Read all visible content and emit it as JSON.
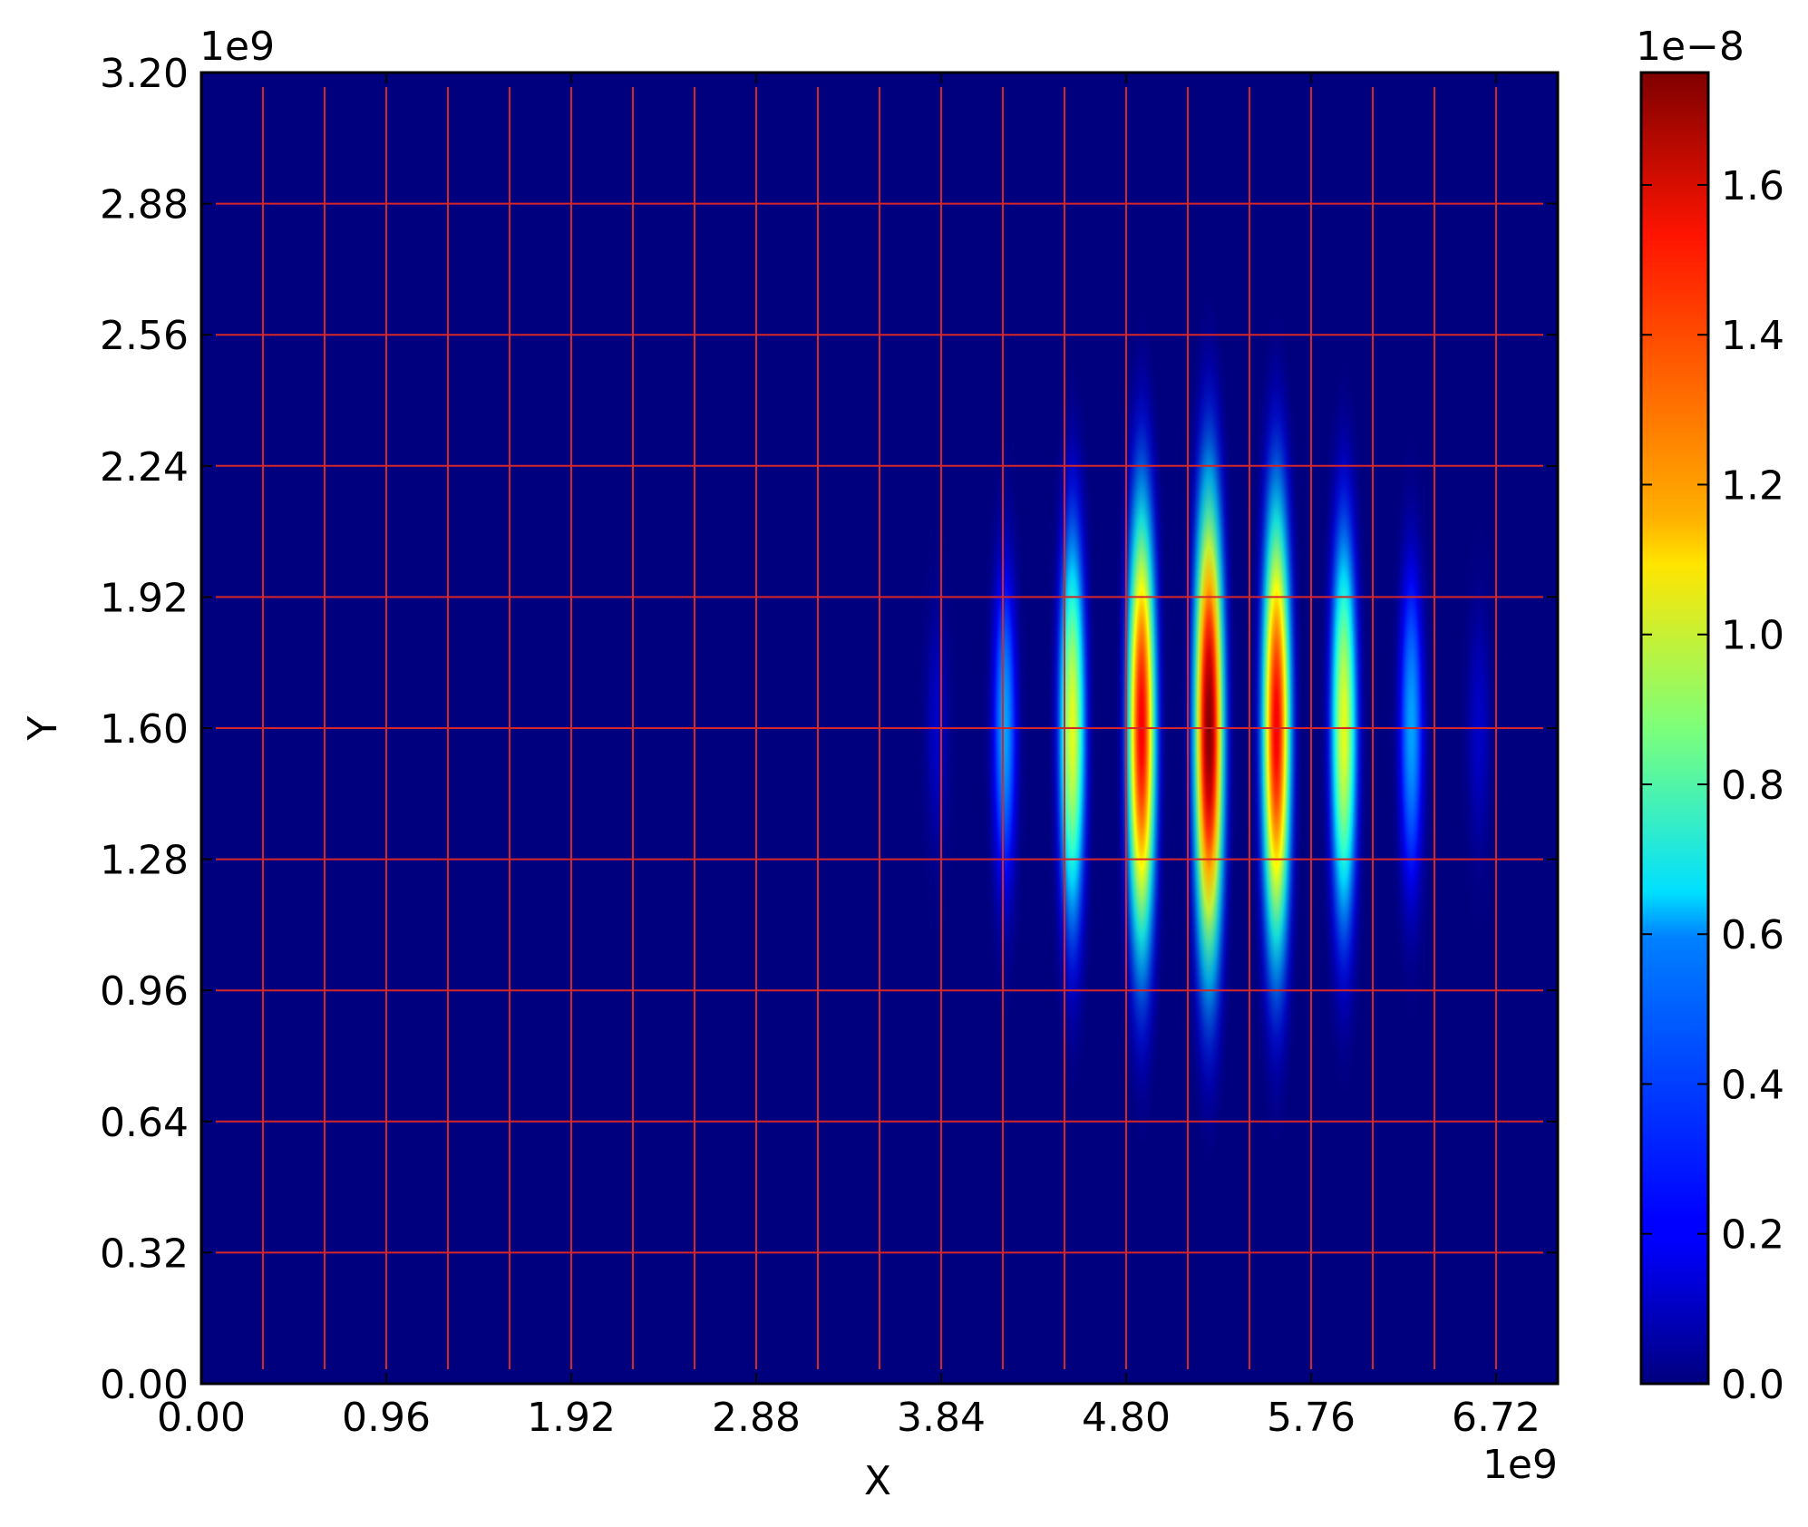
{
  "chart_data": {
    "type": "heatmap",
    "title": "",
    "xlabel": "X",
    "ylabel": "Y",
    "x_offset_label": "1e9",
    "y_offset_label": "1e9",
    "xlim": [
      0.0,
      7.04
    ],
    "ylim": [
      0.0,
      3.2
    ],
    "x_ticks": [
      "0.00",
      "0.96",
      "1.92",
      "2.88",
      "3.84",
      "4.80",
      "5.76",
      "6.72"
    ],
    "y_ticks": [
      "0.00",
      "0.32",
      "0.64",
      "0.96",
      "1.28",
      "1.60",
      "1.92",
      "2.24",
      "2.56",
      "2.88",
      "3.20"
    ],
    "grid": true,
    "grid_color": "#d62728",
    "grid_x": [
      0.32,
      0.64,
      0.96,
      1.28,
      1.6,
      1.92,
      2.24,
      2.56,
      2.88,
      3.2,
      3.52,
      3.84,
      4.16,
      4.48,
      4.8,
      5.12,
      5.44,
      5.76,
      6.08,
      6.4,
      6.72
    ],
    "grid_y": [
      0.32,
      0.64,
      0.96,
      1.28,
      1.6,
      1.92,
      2.24,
      2.56,
      2.88
    ],
    "colormap": "jet",
    "background_color": "#00007f",
    "colorbar": {
      "offset_label": "1e−8",
      "range": [
        0.0,
        1.75
      ],
      "ticks": [
        "0.0",
        "0.2",
        "0.4",
        "0.6",
        "0.8",
        "1.0",
        "1.2",
        "1.4",
        "1.6"
      ]
    },
    "blobs": [
      {
        "x": 3.82,
        "y": 1.6,
        "value": 0.12
      },
      {
        "x": 4.17,
        "y": 1.6,
        "value": 0.5
      },
      {
        "x": 4.52,
        "y": 1.6,
        "value": 1.05
      },
      {
        "x": 4.88,
        "y": 1.6,
        "value": 1.55
      },
      {
        "x": 5.23,
        "y": 1.6,
        "value": 1.75
      },
      {
        "x": 5.58,
        "y": 1.6,
        "value": 1.55
      },
      {
        "x": 5.93,
        "y": 1.6,
        "value": 1.05
      },
      {
        "x": 6.28,
        "y": 1.6,
        "value": 0.5
      },
      {
        "x": 6.63,
        "y": 1.6,
        "value": 0.12
      }
    ]
  }
}
